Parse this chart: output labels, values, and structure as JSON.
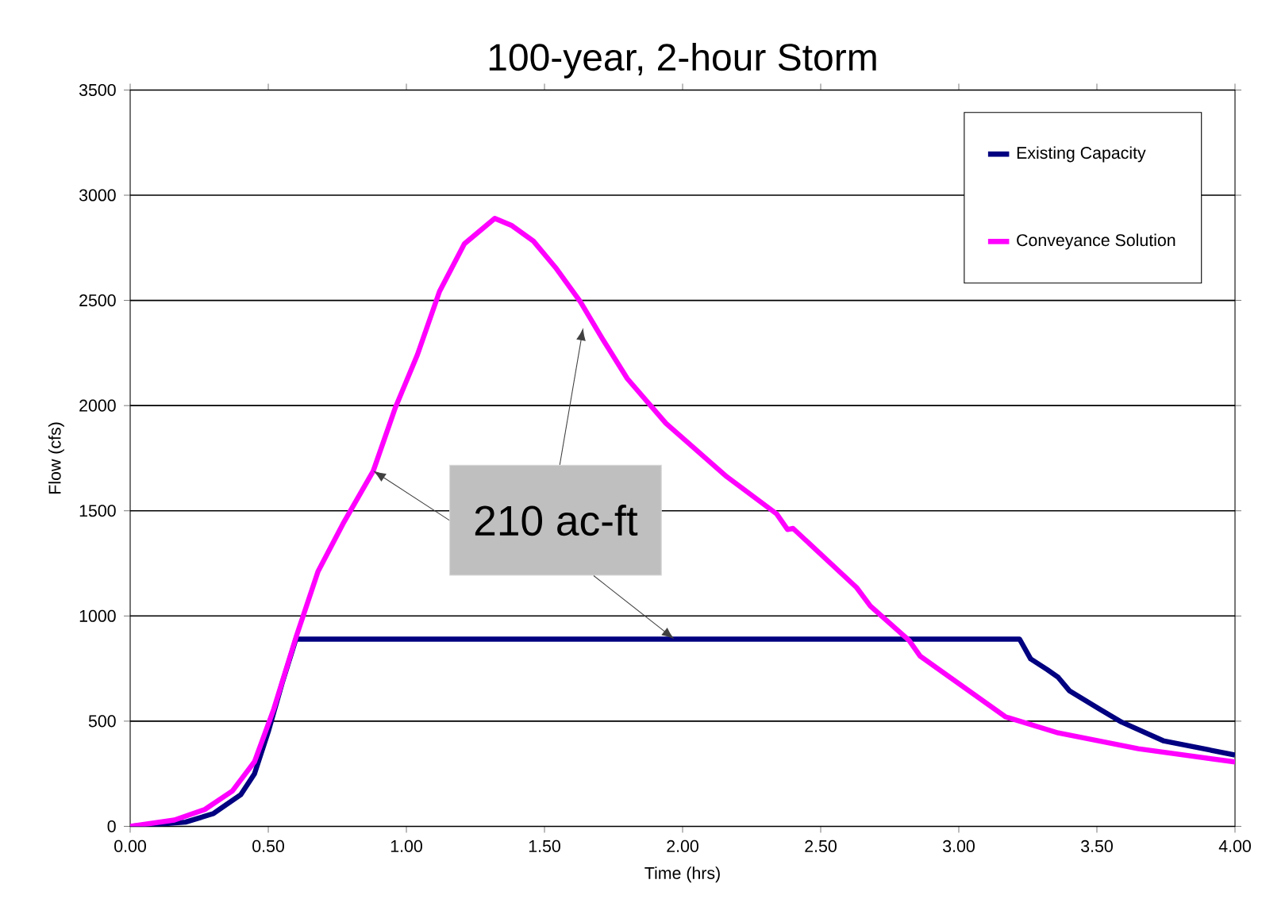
{
  "chart_data": {
    "type": "line",
    "title": "100-year, 2-hour Storm",
    "xlabel": "Time (hrs)",
    "ylabel": "Flow (cfs)",
    "xlim": [
      0,
      4
    ],
    "ylim": [
      0,
      3500
    ],
    "xticks": [
      {
        "value": 0,
        "label": "0.00"
      },
      {
        "value": 0.5,
        "label": "0.50"
      },
      {
        "value": 1,
        "label": "1.00"
      },
      {
        "value": 1.5,
        "label": "1.50"
      },
      {
        "value": 2,
        "label": "2.00"
      },
      {
        "value": 2.5,
        "label": "2.50"
      },
      {
        "value": 3,
        "label": "3.00"
      },
      {
        "value": 3.5,
        "label": "3.50"
      },
      {
        "value": 4,
        "label": "4.00"
      }
    ],
    "yticks": [
      0,
      500,
      1000,
      1500,
      2000,
      2500,
      3000,
      3500
    ],
    "grid": "y",
    "legend": "top right",
    "line_style": "solid",
    "marker": "none",
    "annotations": [
      {
        "text": "210 ac-ft",
        "x": 1.97,
        "y": 890
      }
    ],
    "series": [
      {
        "name": "Existing Capacity",
        "color": "#000080",
        "x": [
          0,
          0.2,
          0.3,
          0.4,
          0.45,
          0.5,
          0.55,
          0.6,
          1.0,
          1.5,
          2.0,
          2.5,
          3.0,
          3.22,
          3.26,
          3.32,
          3.36,
          3.4,
          3.51,
          3.59,
          3.74,
          4.0
        ],
        "values": [
          0,
          20,
          60,
          150,
          250,
          450,
          680,
          890,
          890,
          890,
          890,
          890,
          890,
          890,
          796,
          745,
          708,
          645,
          557,
          495,
          407,
          339
        ]
      },
      {
        "name": "Conveyance Solution",
        "color": "#ff00ff",
        "x": [
          0,
          0.16,
          0.27,
          0.37,
          0.45,
          0.52,
          0.6,
          0.68,
          0.77,
          0.88,
          0.96,
          1.04,
          1.12,
          1.21,
          1.32,
          1.38,
          1.46,
          1.54,
          1.63,
          1.71,
          1.8,
          1.94,
          2.16,
          2.34,
          2.38,
          2.4,
          2.63,
          2.68,
          2.82,
          2.86,
          3.17,
          3.36,
          3.65,
          4.0
        ],
        "values": [
          0,
          30,
          80,
          168,
          307,
          558,
          897,
          1211,
          1437,
          1689,
          1990,
          2242,
          2543,
          2769,
          2890,
          2857,
          2782,
          2656,
          2493,
          2317,
          2128,
          1915,
          1662,
          1486,
          1411,
          1416,
          1135,
          1047,
          884,
          809,
          520,
          444,
          369,
          306
        ]
      }
    ]
  }
}
